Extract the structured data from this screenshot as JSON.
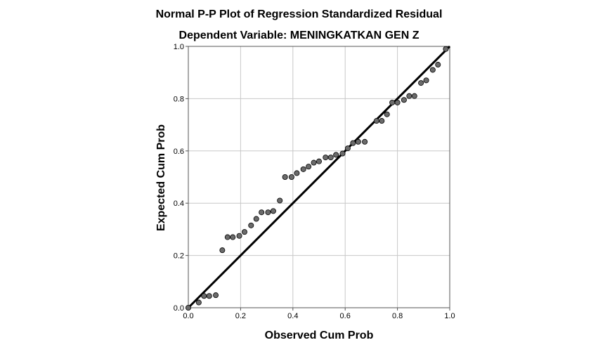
{
  "chart_data": {
    "type": "scatter",
    "title": "Normal P-P Plot of Regression Standardized Residual",
    "subtitle": "Dependent Variable: MENINGKATKAN GEN Z",
    "xlabel": "Observed Cum Prob",
    "ylabel": "Expected Cum Prob",
    "xlim": [
      0,
      1
    ],
    "ylim": [
      0,
      1
    ],
    "xticks": [
      "0.0",
      "0.2",
      "0.4",
      "0.6",
      "0.8",
      "1.0"
    ],
    "yticks": [
      "0.0",
      "0.2",
      "0.4",
      "0.6",
      "0.8",
      "1.0"
    ],
    "grid": true,
    "reference_line": {
      "from": [
        0,
        0
      ],
      "to": [
        1,
        1
      ]
    },
    "colors": {
      "points": "#6b6b6b",
      "point_edge": "#000000",
      "line": "#000000",
      "grid": "#c8c8c8"
    },
    "series": [
      {
        "points": [
          [
            0.0,
            0.0
          ],
          [
            0.04,
            0.02
          ],
          [
            0.06,
            0.045
          ],
          [
            0.08,
            0.045
          ],
          [
            0.105,
            0.048
          ],
          [
            0.13,
            0.22
          ],
          [
            0.15,
            0.27
          ],
          [
            0.17,
            0.27
          ],
          [
            0.195,
            0.275
          ],
          [
            0.215,
            0.29
          ],
          [
            0.24,
            0.315
          ],
          [
            0.26,
            0.34
          ],
          [
            0.28,
            0.365
          ],
          [
            0.305,
            0.365
          ],
          [
            0.325,
            0.37
          ],
          [
            0.35,
            0.41
          ],
          [
            0.37,
            0.5
          ],
          [
            0.395,
            0.5
          ],
          [
            0.415,
            0.515
          ],
          [
            0.44,
            0.53
          ],
          [
            0.46,
            0.54
          ],
          [
            0.48,
            0.555
          ],
          [
            0.5,
            0.56
          ],
          [
            0.525,
            0.575
          ],
          [
            0.545,
            0.575
          ],
          [
            0.565,
            0.585
          ],
          [
            0.59,
            0.59
          ],
          [
            0.61,
            0.61
          ],
          [
            0.63,
            0.63
          ],
          [
            0.65,
            0.635
          ],
          [
            0.675,
            0.635
          ],
          [
            0.72,
            0.715
          ],
          [
            0.74,
            0.715
          ],
          [
            0.76,
            0.74
          ],
          [
            0.78,
            0.785
          ],
          [
            0.8,
            0.785
          ],
          [
            0.825,
            0.795
          ],
          [
            0.845,
            0.81
          ],
          [
            0.865,
            0.81
          ],
          [
            0.89,
            0.86
          ],
          [
            0.91,
            0.87
          ],
          [
            0.935,
            0.91
          ],
          [
            0.955,
            0.93
          ],
          [
            0.985,
            0.99
          ]
        ]
      }
    ]
  }
}
